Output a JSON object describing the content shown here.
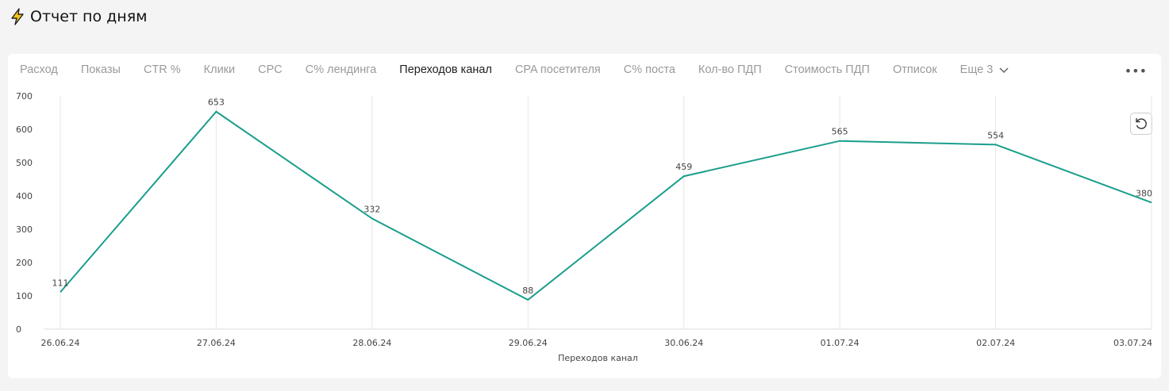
{
  "header": {
    "title": "Отчет по дням"
  },
  "tabs": {
    "items": [
      "Расход",
      "Показы",
      "CTR %",
      "Клики",
      "CPC",
      "С% лендинга",
      "Переходов канал",
      "CPA посетителя",
      "С% поста",
      "Кол-во ПДП",
      "Стоимость ПДП",
      "Отписок",
      "Еще 3"
    ],
    "active": 6
  },
  "chart_data": {
    "type": "line",
    "categories": [
      "26.06.24",
      "27.06.24",
      "28.06.24",
      "29.06.24",
      "30.06.24",
      "01.07.24",
      "02.07.24",
      "03.07.24"
    ],
    "values": [
      111,
      653,
      332,
      88,
      459,
      565,
      554,
      380
    ],
    "color": "#1a9e8c",
    "x_label": "Переходов канал",
    "ylim": [
      0,
      700
    ],
    "yticks": [
      0,
      100,
      200,
      300,
      400,
      500,
      600,
      700
    ],
    "data_labels": true,
    "grid": true
  }
}
